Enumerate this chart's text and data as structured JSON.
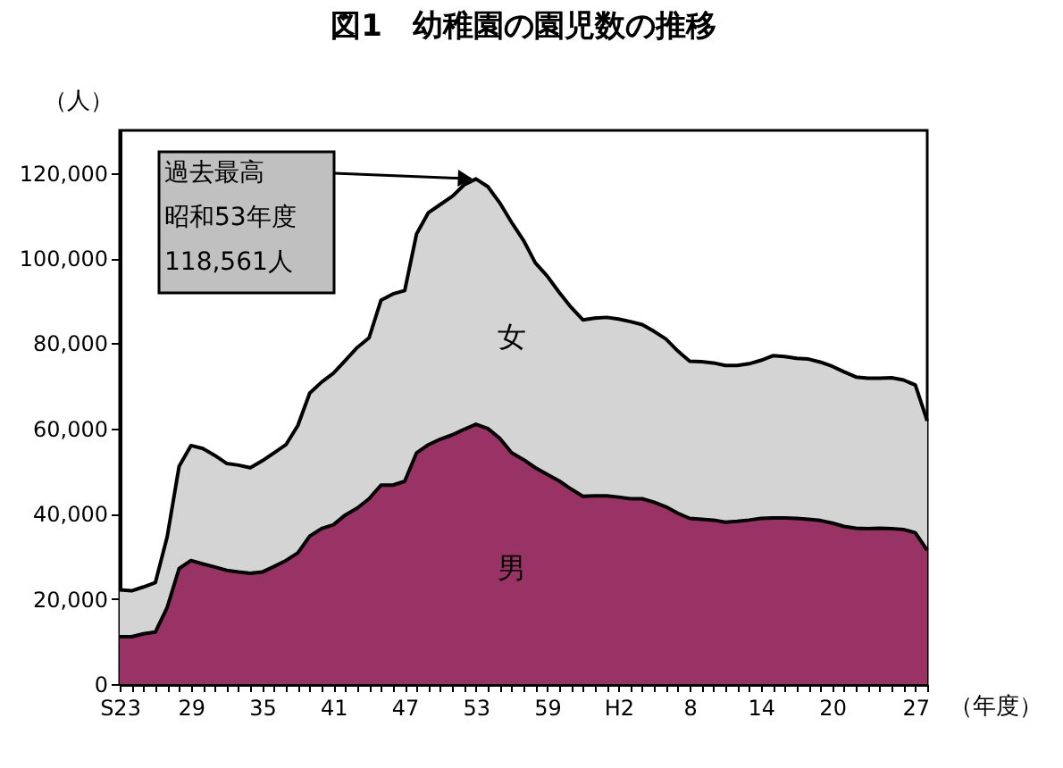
{
  "chart_data": {
    "type": "area",
    "stacked": true,
    "title": "図1　幼稚園の園児数の推移",
    "xlabel": "（年度）",
    "ylabel": "（人）",
    "categories": [
      "S23",
      null,
      null,
      null,
      null,
      null,
      "29",
      null,
      null,
      null,
      null,
      null,
      "35",
      null,
      null,
      null,
      null,
      null,
      "41",
      null,
      null,
      null,
      null,
      null,
      "47",
      null,
      null,
      null,
      null,
      null,
      "53",
      null,
      null,
      null,
      null,
      null,
      "59",
      null,
      null,
      null,
      null,
      null,
      "H2",
      null,
      null,
      null,
      null,
      null,
      "8",
      null,
      null,
      null,
      null,
      null,
      "14",
      null,
      null,
      null,
      null,
      null,
      "20",
      null,
      null,
      null,
      null,
      null,
      null,
      "27",
      null
    ],
    "series": [
      {
        "name": "男",
        "color": "#993366",
        "values": [
          11100,
          11100,
          11800,
          12200,
          18000,
          27100,
          29000,
          28200,
          27500,
          26700,
          26300,
          26000,
          26300,
          27600,
          29000,
          30800,
          34700,
          36500,
          37400,
          39700,
          41300,
          43500,
          46700,
          46700,
          47600,
          54300,
          56200,
          57500,
          58500,
          59800,
          61000,
          60000,
          57700,
          54300,
          52700,
          50800,
          49200,
          47700,
          45800,
          44100,
          44200,
          44200,
          43900,
          43500,
          43500,
          42700,
          41600,
          40100,
          38900,
          38700,
          38500,
          38000,
          38200,
          38500,
          38900,
          39000,
          39000,
          38900,
          38700,
          38400,
          37800,
          37000,
          36600,
          36500,
          36600,
          36500,
          36300,
          35500,
          31400
        ]
      },
      {
        "name": "女",
        "color": "#d4d4d4",
        "values": [
          11000,
          10800,
          11000,
          11600,
          16600,
          24000,
          27000,
          27100,
          26200,
          25100,
          25100,
          24800,
          26100,
          26700,
          27200,
          29900,
          33600,
          34400,
          35600,
          36300,
          37700,
          37800,
          43400,
          44900,
          44800,
          51400,
          54500,
          55100,
          56000,
          57400,
          57600,
          56800,
          55300,
          54100,
          51500,
          48100,
          46600,
          44300,
          42700,
          41400,
          41700,
          41900,
          41800,
          41600,
          40900,
          40100,
          39400,
          38100,
          36900,
          37000,
          36900,
          36800,
          36600,
          36700,
          37100,
          38100,
          37900,
          37600,
          37600,
          37200,
          36800,
          36300,
          35500,
          35300,
          35200,
          35400,
          35100,
          34700,
          30400
        ]
      }
    ],
    "ylim": [
      0,
      130000
    ],
    "yticks": [
      0,
      {
        "value": 20000,
        "label": "20,000"
      },
      {
        "value": 40000,
        "label": "40,000"
      },
      {
        "value": 60000,
        "label": "60,000"
      },
      {
        "value": 80000,
        "label": "80,000"
      },
      {
        "value": 100000,
        "label": "100,000"
      },
      {
        "value": 120000,
        "label": "120,000"
      }
    ],
    "annotations": [
      "過去最高",
      "昭和53年度",
      "118,561人"
    ],
    "legend": false,
    "grid": false
  }
}
